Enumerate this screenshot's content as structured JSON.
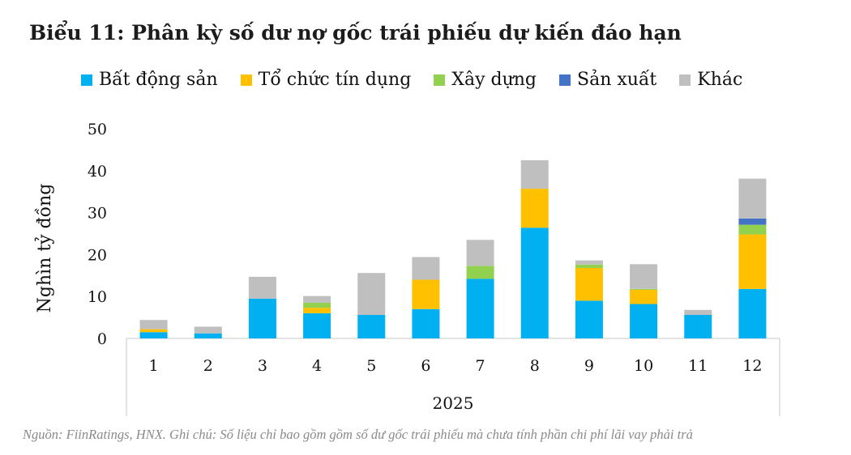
{
  "title": "Biểu 11: Phân kỳ số dư nợ gốc trái phiếu dự kiến đáo hạn",
  "source_note": "Nguồn: FiinRatings, HNX. Ghi chú: Số liệu chỉ bao gồm gồm số dư gốc trái phiếu mà chưa tính phần chi phí lãi vay phải trả",
  "chart_data": {
    "type": "bar",
    "stacked": true,
    "title": "",
    "xlabel": "2025",
    "ylabel": "Nghìn tỷ đồng",
    "ylim": [
      0,
      50
    ],
    "yticks": [
      0,
      10,
      20,
      30,
      40,
      50
    ],
    "grid": false,
    "legend_position": "top",
    "categories": [
      "1",
      "2",
      "3",
      "4",
      "5",
      "6",
      "7",
      "8",
      "9",
      "10",
      "11",
      "12"
    ],
    "series": [
      {
        "name": "Bất động sản",
        "color": "#00b0f0",
        "values": [
          1.5,
          1.2,
          9.5,
          6.0,
          5.6,
          7.0,
          14.2,
          26.4,
          9.0,
          8.2,
          5.6,
          11.8
        ]
      },
      {
        "name": "Tổ chức tín dụng",
        "color": "#ffc000",
        "values": [
          0.7,
          0.0,
          0.0,
          1.3,
          0.0,
          7.0,
          0.0,
          9.3,
          7.8,
          3.4,
          0.0,
          13.0
        ]
      },
      {
        "name": "Xây dựng",
        "color": "#92d050",
        "values": [
          0.0,
          0.0,
          0.0,
          1.2,
          0.0,
          0.0,
          3.1,
          0.0,
          0.8,
          0.2,
          0.0,
          2.3
        ]
      },
      {
        "name": "Sản xuất",
        "color": "#4472c4",
        "values": [
          0.0,
          0.0,
          0.0,
          0.0,
          0.0,
          0.0,
          0.0,
          0.0,
          0.0,
          0.0,
          0.0,
          1.5
        ]
      },
      {
        "name": "Khác",
        "color": "#bfbfbf",
        "values": [
          2.2,
          1.6,
          5.2,
          1.6,
          10.0,
          5.4,
          6.2,
          6.8,
          1.0,
          5.9,
          1.2,
          9.5
        ]
      }
    ]
  }
}
